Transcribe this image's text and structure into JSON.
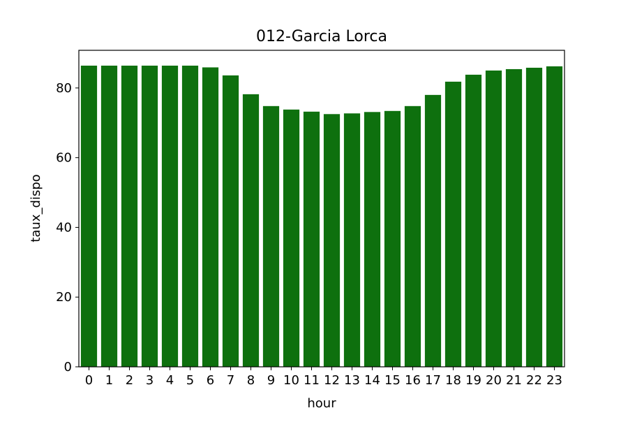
{
  "chart_data": {
    "type": "bar",
    "title": "012-Garcia Lorca",
    "xlabel": "hour",
    "ylabel": "taux_dispo",
    "categories": [
      "0",
      "1",
      "2",
      "3",
      "4",
      "5",
      "6",
      "7",
      "8",
      "9",
      "10",
      "11",
      "12",
      "13",
      "14",
      "15",
      "16",
      "17",
      "18",
      "19",
      "20",
      "21",
      "22",
      "23"
    ],
    "values": [
      86.4,
      86.4,
      86.4,
      86.4,
      86.4,
      86.4,
      85.9,
      83.6,
      78.2,
      74.8,
      73.8,
      73.2,
      72.5,
      72.7,
      73.1,
      73.4,
      74.8,
      78.0,
      81.8,
      83.8,
      85.0,
      85.4,
      85.8,
      86.2
    ],
    "ylim": [
      0,
      90.8
    ],
    "yticks": [
      0,
      20,
      40,
      60,
      80
    ],
    "grid": false,
    "bar_color": "#0e700e"
  }
}
